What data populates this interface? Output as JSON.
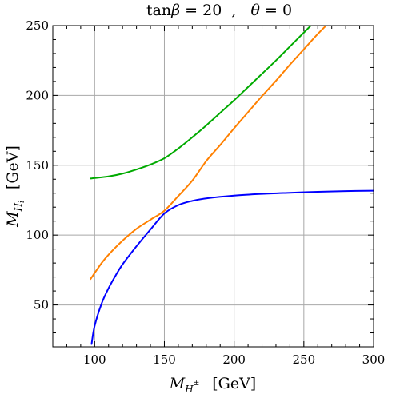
{
  "chart_data": {
    "type": "line",
    "title": "tanβ = 20  ,    θ = 0",
    "title_parts": {
      "left_prefix": "tan",
      "left_symbol": "β",
      "left_value": " = 20",
      "separator": "  ,  ",
      "right_symbol": "θ",
      "right_value": " = 0"
    },
    "xlabel": "M",
    "xlabel_sub": "H",
    "xlabel_sup": "±",
    "xlabel_unit": "[GeV]",
    "ylabel": "M",
    "ylabel_sub": "H",
    "ylabel_subsub": "i",
    "ylabel_unit": "[GeV]",
    "xlim": [
      70,
      300
    ],
    "ylim": [
      20,
      250
    ],
    "xticks": [
      100,
      150,
      200,
      250,
      300
    ],
    "yticks": [
      50,
      100,
      150,
      200,
      250
    ],
    "grid": true,
    "series": [
      {
        "color": "#00aa00",
        "x": [
          97,
          110,
          120,
          130,
          140,
          150,
          160,
          170,
          180,
          190,
          200,
          210,
          220,
          230,
          240,
          250,
          257
        ],
        "y": [
          140.5,
          142,
          144,
          147,
          150.5,
          155,
          162,
          170,
          178.5,
          187.5,
          196.5,
          206,
          215.5,
          225,
          235,
          245,
          252
        ]
      },
      {
        "color": "#ff8000",
        "x": [
          97,
          105,
          110,
          120,
          130,
          140,
          150,
          160,
          170,
          180,
          190,
          200,
          210,
          220,
          230,
          240,
          250,
          260,
          268
        ],
        "y": [
          68.5,
          80,
          86,
          96,
          104.5,
          111,
          117.5,
          128,
          139,
          153,
          164.5,
          176.5,
          188,
          199.5,
          210.5,
          222,
          233,
          244,
          252
        ]
      },
      {
        "color": "#0000ff",
        "x": [
          97.8,
          100,
          105,
          110,
          115,
          120,
          130,
          140,
          150,
          160,
          170,
          180,
          200,
          220,
          240,
          260,
          280,
          300
        ],
        "y": [
          22,
          35,
          51,
          62,
          71,
          79,
          92,
          104,
          115.5,
          121.5,
          124.5,
          126.3,
          128.3,
          129.5,
          130.3,
          131,
          131.5,
          131.8
        ]
      }
    ]
  }
}
